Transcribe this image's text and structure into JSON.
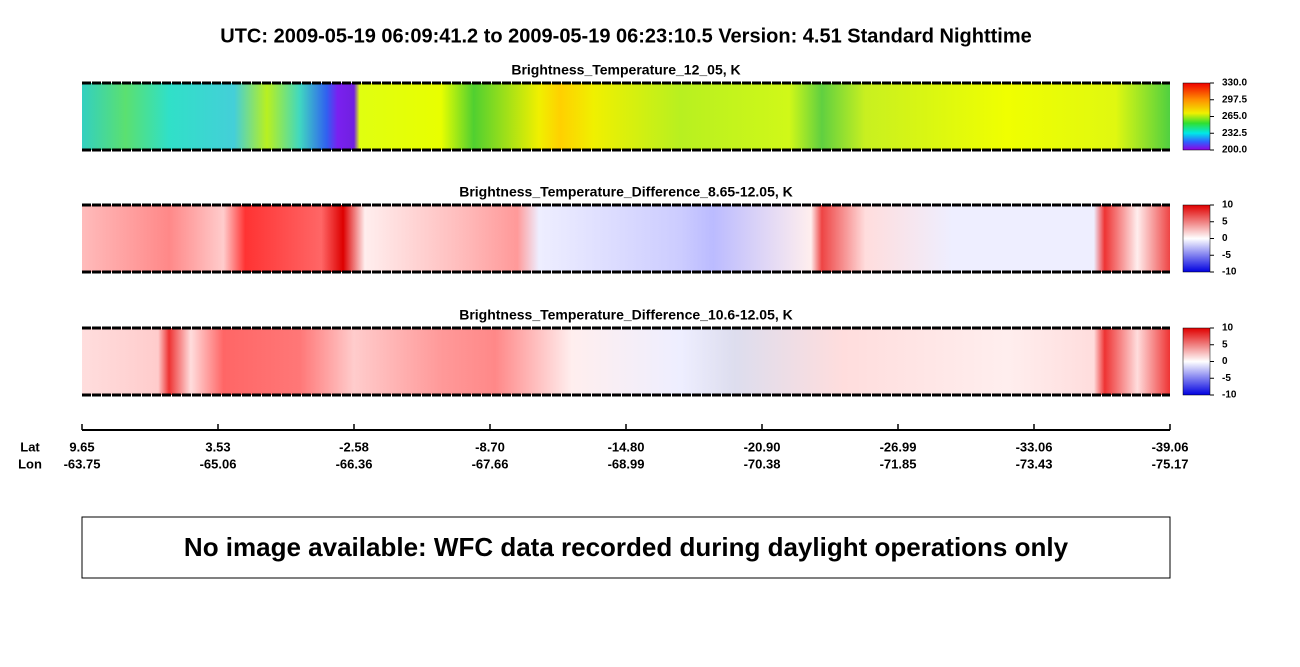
{
  "header": {
    "title": "UTC:  2009-05-19   06:09:41.2  to  2009-05-19   06:23:10.5    Version: 4.51  Standard Nighttime"
  },
  "panels": [
    {
      "title": "Brightness_Temperature_12_05, K",
      "lim": [
        200,
        330
      ],
      "ticks": [
        {
          "value": 330,
          "label": "330.0"
        },
        {
          "value": 297.5,
          "label": "297.5"
        },
        {
          "value": 265,
          "label": "265.0"
        },
        {
          "value": 232.5,
          "label": "232.5"
        },
        {
          "value": 200,
          "label": "200.0"
        }
      ]
    },
    {
      "title": "Brightness_Temperature_Difference_8.65-12.05, K",
      "lim": [
        -10,
        10
      ],
      "ticks": [
        10,
        5,
        0,
        -5,
        -10
      ]
    },
    {
      "title": "Brightness_Temperature_Difference_10.6-12.05, K",
      "lim": [
        -10,
        10
      ],
      "ticks": [
        10,
        5,
        0,
        -5,
        -10
      ]
    }
  ],
  "axis": {
    "lat_label": "Lat",
    "lon_label": "Lon",
    "ticks": [
      {
        "lat": "9.65",
        "lon": "-63.75"
      },
      {
        "lat": "3.53",
        "lon": "-65.06"
      },
      {
        "lat": "-2.58",
        "lon": "-66.36"
      },
      {
        "lat": "-8.70",
        "lon": "-67.66"
      },
      {
        "lat": "-14.80",
        "lon": "-68.99"
      },
      {
        "lat": "-20.90",
        "lon": "-70.38"
      },
      {
        "lat": "-26.99",
        "lon": "-71.85"
      },
      {
        "lat": "-33.06",
        "lon": "-73.43"
      },
      {
        "lat": "-39.06",
        "lon": "-75.17"
      }
    ]
  },
  "message": "No image available: WFC data recorded during daylight operations only"
}
